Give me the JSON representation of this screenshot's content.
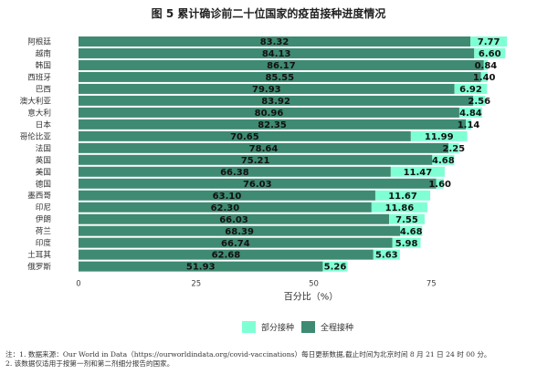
{
  "title": "图 5  累计确诊前二十位国家的疫苗接种进度情况",
  "notes": [
    "注：1. 数据来源：Our World in Data（https://ourworldindata.org/covid-vaccinations）每日更新数据,截止时间为北京时间 8 月 21 日 24 时 00 分。",
    "    2. 该数据仅适用于按第一剂和第二剂细分报告的国家。"
  ],
  "chart_data": {
    "type": "bar",
    "orientation": "horizontal",
    "stacked": true,
    "categories": [
      "阿根廷",
      "越南",
      "韩国",
      "西班牙",
      "巴西",
      "澳大利亚",
      "意大利",
      "日本",
      "哥伦比亚",
      "法国",
      "英国",
      "美国",
      "德国",
      "墨西哥",
      "印尼",
      "伊朗",
      "荷兰",
      "印度",
      "土耳其",
      "俄罗斯"
    ],
    "series": [
      {
        "name": "全程接种",
        "color": "#3f8a72",
        "values": [
          83.32,
          84.13,
          86.17,
          85.55,
          79.93,
          83.92,
          80.96,
          82.35,
          70.65,
          78.64,
          75.21,
          66.38,
          76.03,
          63.1,
          62.3,
          66.03,
          68.39,
          66.74,
          62.68,
          51.93
        ]
      },
      {
        "name": "部分接种",
        "color": "#7fffd4",
        "values": [
          7.77,
          6.6,
          0.84,
          1.4,
          6.92,
          2.56,
          4.84,
          1.14,
          11.99,
          2.25,
          4.68,
          11.47,
          1.6,
          11.67,
          11.86,
          7.55,
          4.68,
          5.98,
          5.63,
          5.26
        ]
      }
    ],
    "xlabel": "百分比（%）",
    "xticks": [
      0,
      25,
      50,
      75
    ],
    "xlim": [
      0,
      100
    ],
    "legend": {
      "position": "bottom",
      "entries": [
        "部分接种",
        "全程接种"
      ]
    },
    "grid": false
  }
}
